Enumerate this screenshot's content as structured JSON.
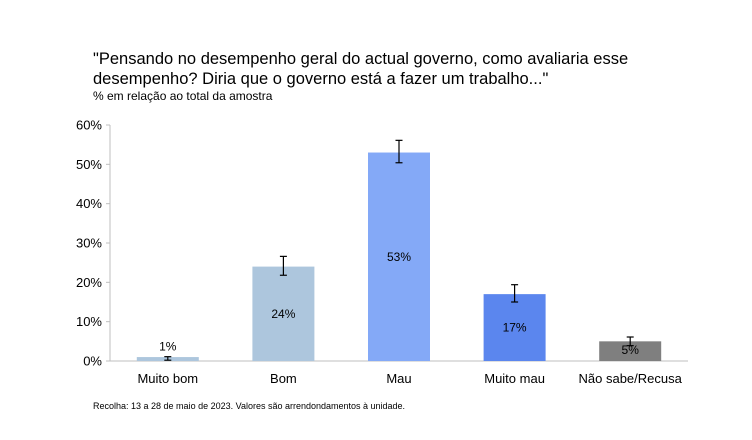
{
  "chart_data": {
    "type": "bar",
    "title": "\"Pensando no desempenho geral do actual governo, como avaliaria esse desempenho? Diria que o governo está a fazer um trabalho...\"",
    "subtitle": "% em relação ao total da amostra",
    "categories": [
      "Muito bom",
      "Bom",
      "Mau",
      "Muito mau",
      "Não sabe/Recusa"
    ],
    "values": [
      1,
      24,
      53,
      17,
      5
    ],
    "error_bars": [
      [
        0.2,
        1.1
      ],
      [
        21.8,
        26.6
      ],
      [
        50.4,
        56.1
      ],
      [
        15.0,
        19.4
      ],
      [
        3.9,
        6.1
      ]
    ],
    "data_labels": [
      "1%",
      "24%",
      "53%",
      "17%",
      "5%"
    ],
    "bar_colors": [
      "#adc6dd",
      "#adc6dd",
      "#84a9f7",
      "#5b86ee",
      "#7f7f7f"
    ],
    "yticks": [
      "0%",
      "10%",
      "20%",
      "30%",
      "40%",
      "50%",
      "60%"
    ],
    "ylim": [
      0,
      60
    ],
    "grid": false,
    "note": "Recolha: 13 a 28 de maio de 2023. Valores são arrendondamentos à unidade."
  }
}
